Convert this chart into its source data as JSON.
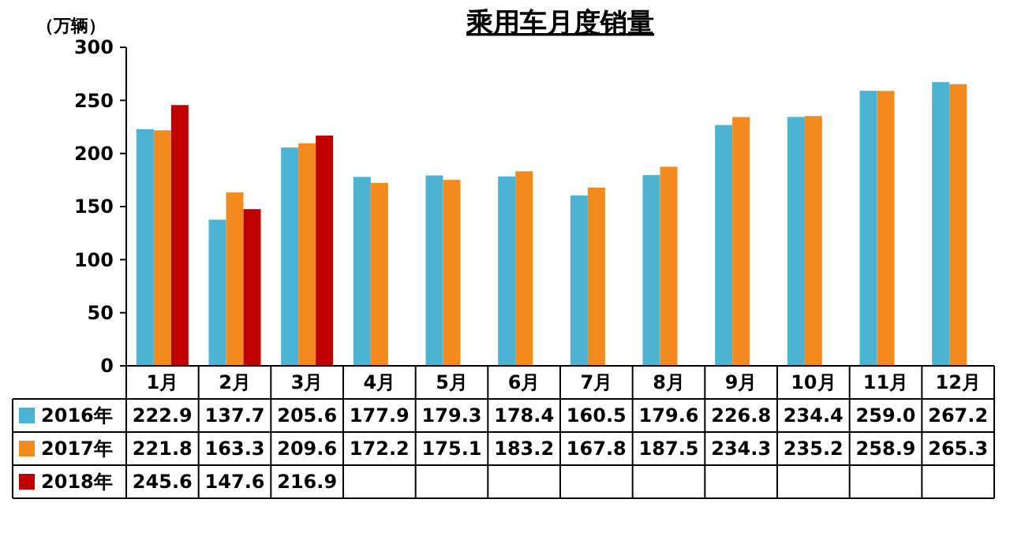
{
  "chart_data": {
    "type": "bar",
    "title": "乘用车月度销量",
    "ylabel": "（万辆）",
    "categories": [
      "1月",
      "2月",
      "3月",
      "4月",
      "5月",
      "6月",
      "7月",
      "8月",
      "9月",
      "10月",
      "11月",
      "12月"
    ],
    "series": [
      {
        "name": "2016年",
        "color": "#4bb3d3",
        "values": [
          222.9,
          137.7,
          205.6,
          177.9,
          179.3,
          178.4,
          160.5,
          179.6,
          226.8,
          234.4,
          259.0,
          267.2
        ],
        "value_labels": [
          "222.9",
          "137.7",
          "205.6",
          "177.9",
          "179.3",
          "178.4",
          "160.5",
          "179.6",
          "226.8",
          "234.4",
          "259.0",
          "267.2"
        ]
      },
      {
        "name": "2017年",
        "color": "#f28a1e",
        "values": [
          221.8,
          163.3,
          209.6,
          172.2,
          175.1,
          183.2,
          167.8,
          187.5,
          234.3,
          235.2,
          258.9,
          265.3
        ],
        "value_labels": [
          "221.8",
          "163.3",
          "209.6",
          "172.2",
          "175.1",
          "183.2",
          "167.8",
          "187.5",
          "234.3",
          "235.2",
          "258.9",
          "265.3"
        ]
      },
      {
        "name": "2018年",
        "color": "#c00000",
        "values": [
          245.6,
          147.6,
          216.9,
          null,
          null,
          null,
          null,
          null,
          null,
          null,
          null,
          null
        ],
        "value_labels": [
          "245.6",
          "147.6",
          "216.9",
          null,
          null,
          null,
          null,
          null,
          null,
          null,
          null,
          null
        ]
      }
    ],
    "ylim": [
      0,
      300
    ],
    "yticks": [
      0,
      50,
      100,
      150,
      200,
      250,
      300
    ],
    "grid": false,
    "legend": "bottom left"
  }
}
